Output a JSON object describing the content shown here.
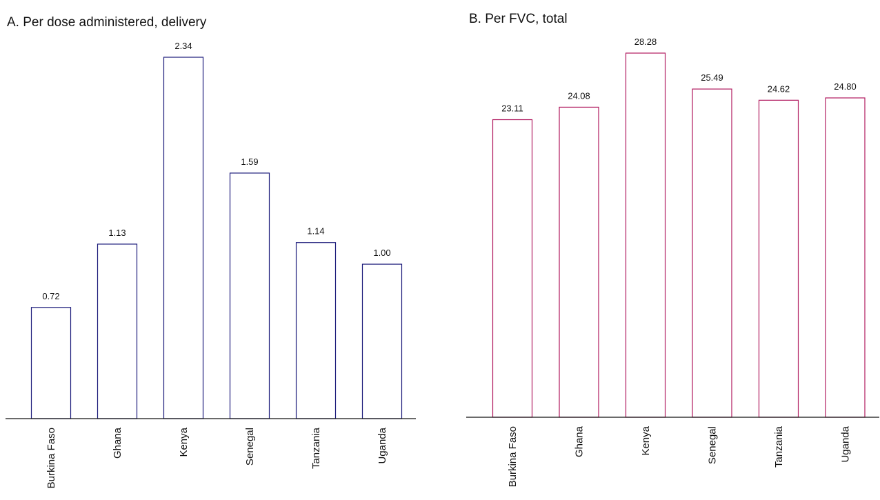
{
  "chart_data": [
    {
      "type": "bar",
      "title": "A. Per dose administered, delivery",
      "categories": [
        "Burkina Faso",
        "Ghana",
        "Kenya",
        "Senegal",
        "Tanzania",
        "Uganda"
      ],
      "values": [
        0.72,
        1.13,
        2.34,
        1.59,
        1.14,
        1.0
      ],
      "value_labels": [
        "0.72",
        "1.13",
        "2.34",
        "1.59",
        "1.14",
        "1.00"
      ],
      "ylim": [
        0,
        2.34
      ],
      "xlabel": "",
      "ylabel": "",
      "grid": false,
      "bar_fill": "none",
      "bar_stroke": "#1b1a7a"
    },
    {
      "type": "bar",
      "title": "B. Per FVC, total",
      "categories": [
        "Burkina Faso",
        "Ghana",
        "Kenya",
        "Senegal",
        "Tanzania",
        "Uganda"
      ],
      "values": [
        23.11,
        24.08,
        28.28,
        25.49,
        24.62,
        24.8
      ],
      "value_labels": [
        "23.11",
        "24.08",
        "28.28",
        "25.49",
        "24.62",
        "24.80"
      ],
      "ylim": [
        0,
        28.28
      ],
      "xlabel": "",
      "ylabel": "",
      "grid": false,
      "bar_fill": "none",
      "bar_stroke": "#b0185e"
    }
  ]
}
